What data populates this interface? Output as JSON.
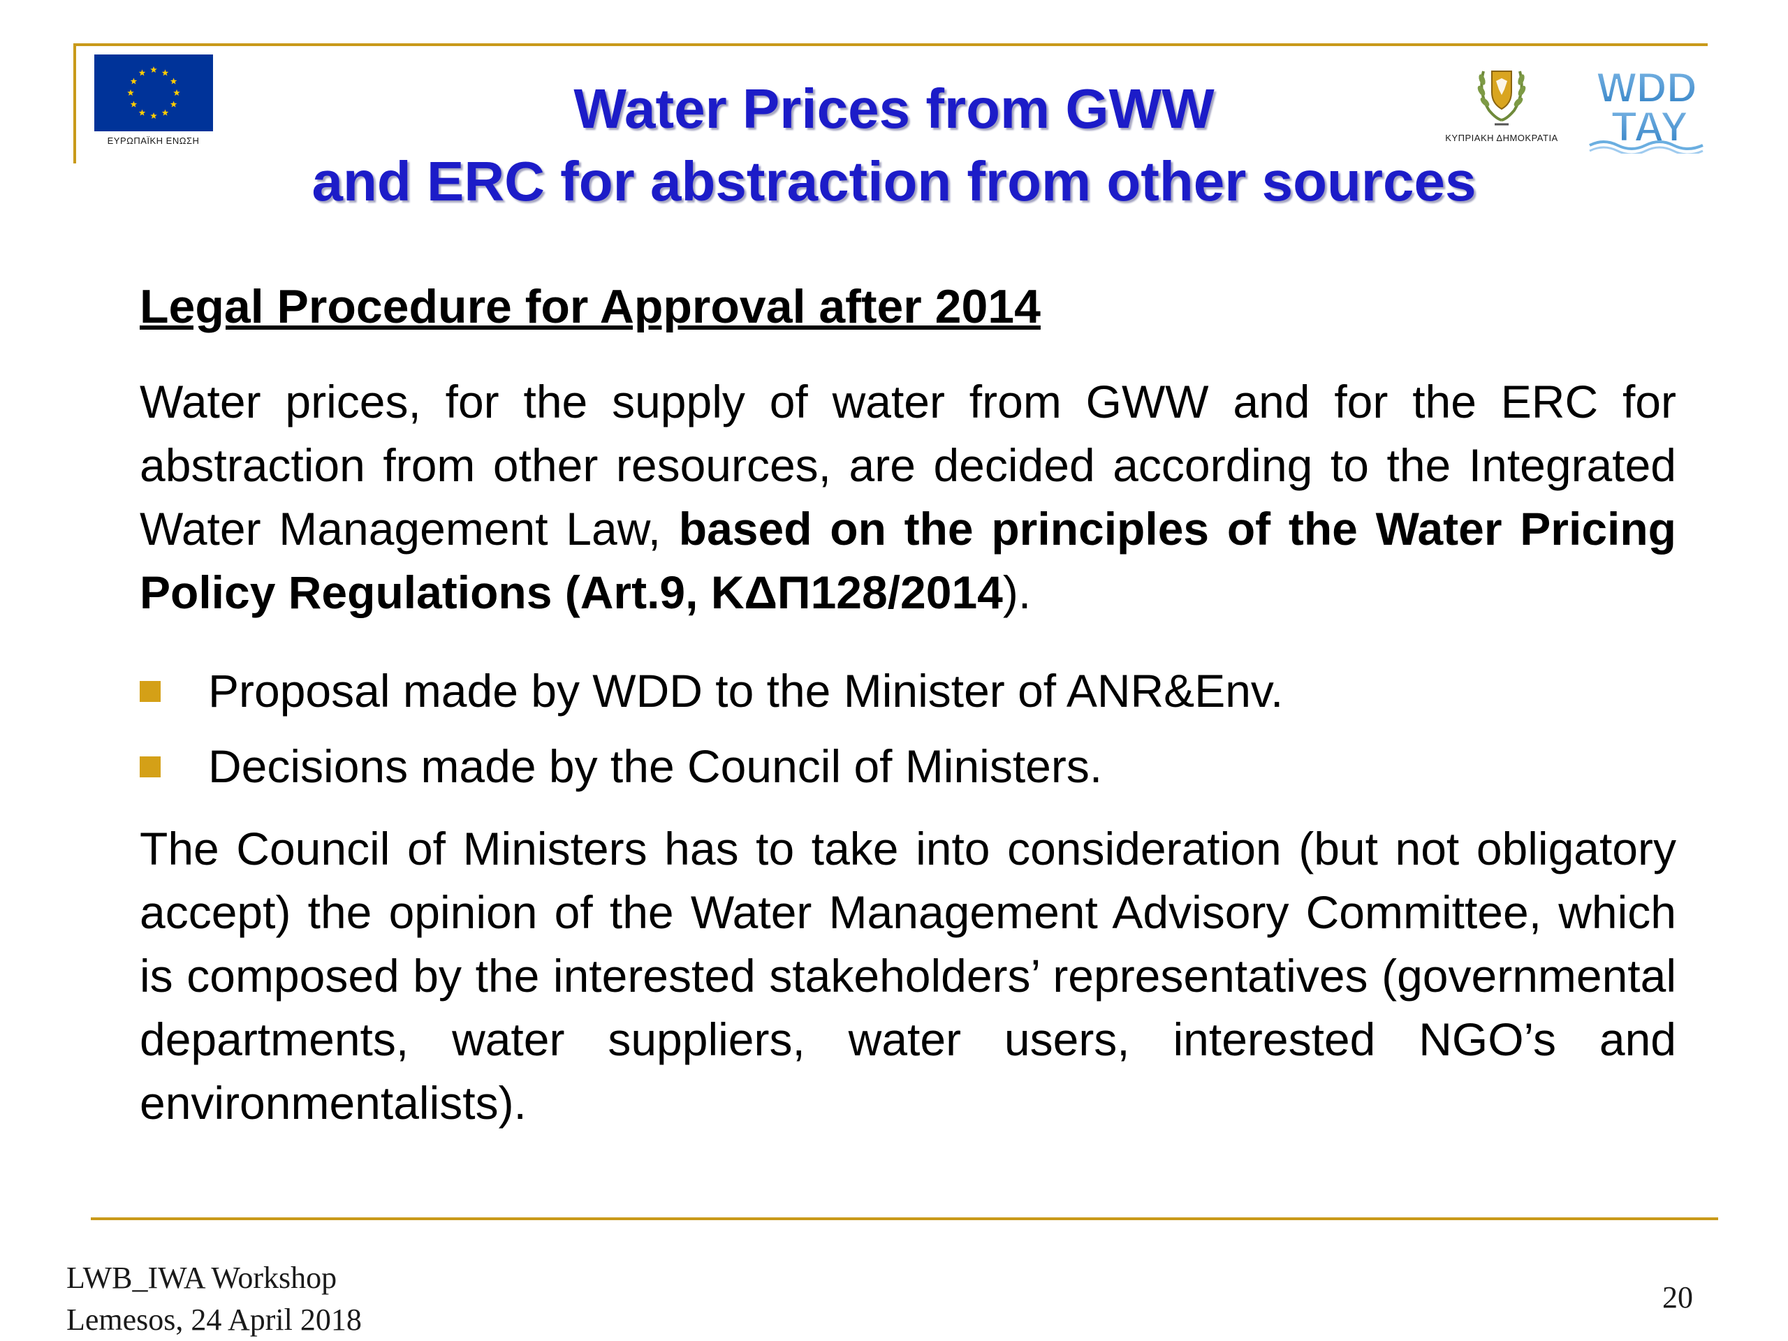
{
  "header": {
    "title_line1": "Water Prices from GWW",
    "title_line2": "and ERC for abstraction from other sources",
    "eu_logo_caption": "ΕΥΡΩΠΑΪΚΗ ΕΝΩΣΗ",
    "cyprus_logo_caption": "ΚΥΠΡΙΑΚΗ ΔΗΜΟΚΡΑΤΙΑ",
    "wdd_logo_text": "WDD",
    "tay_logo_text": "TAY"
  },
  "body": {
    "subheading": "Legal Procedure for Approval after 2014",
    "para1_normal": "Water prices, for the supply of water from GWW and for the ERC for abstraction from other resources, are decided according to the Integrated Water Management Law, ",
    "para1_bold": "based on the principles of the Water Pricing Policy Regulations (Art.9, ΚΔΠ128/2014",
    "para1_end": ").",
    "bullets": [
      "Proposal made by WDD to the Minister of ANR&Env.",
      "Decisions made by the Council of Ministers."
    ],
    "para2": "The Council of Ministers has to take into consideration (but not obligatory accept) the opinion of the Water Management Advisory Committee, which is composed by the interested stakeholders’ representatives (governmental departments, water suppliers, water users, interested NGO’s and environmentalists)."
  },
  "footer": {
    "line1": "LWB_IWA Workshop",
    "line2": "Lemesos, 24 April 2018",
    "page_number": "20"
  },
  "colors": {
    "title": "#1c1cc8",
    "accent_gold": "#c99a1a",
    "bullet": "#d4a017",
    "eu_blue": "#003399",
    "eu_star": "#ffcc00"
  }
}
